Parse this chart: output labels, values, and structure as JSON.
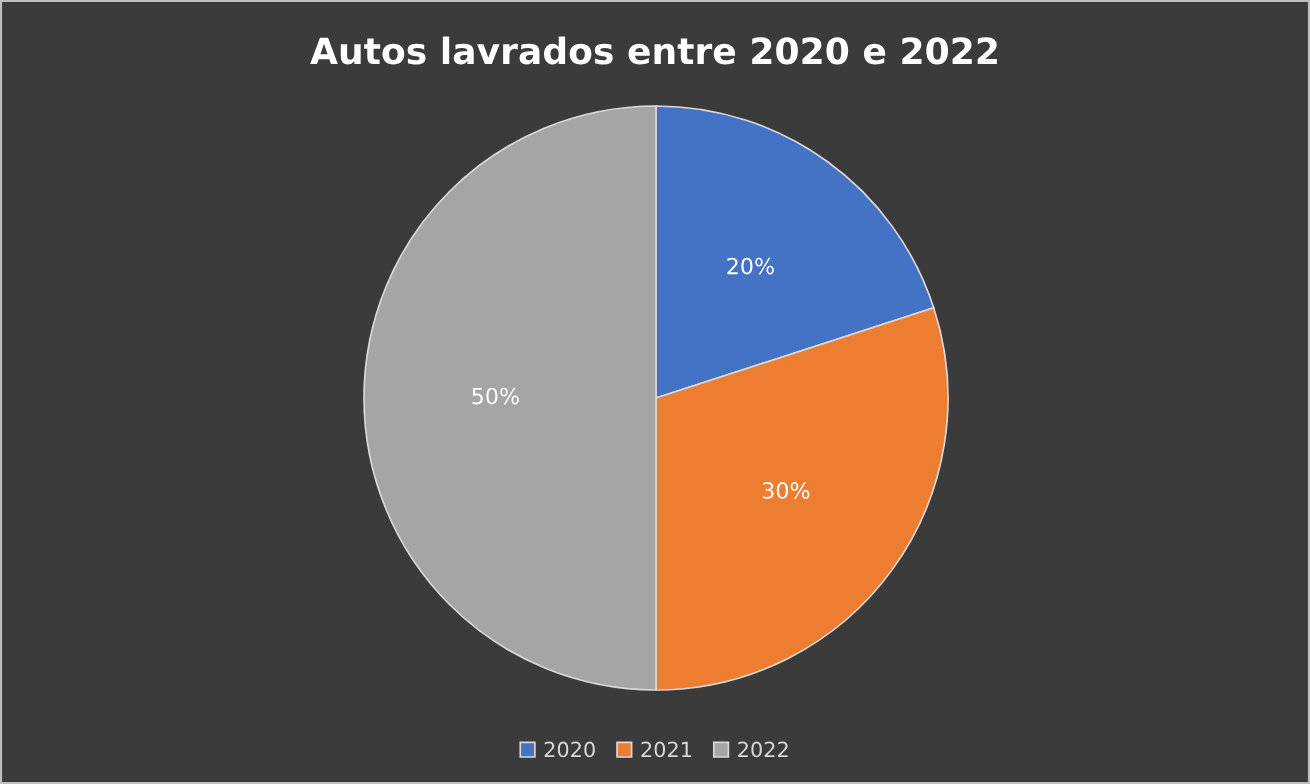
{
  "chart_data": {
    "type": "pie",
    "title": "Autos lavrados entre 2020 e 2022",
    "categories": [
      "2020",
      "2021",
      "2022"
    ],
    "values": [
      20,
      30,
      50
    ],
    "colors": [
      "#4472c4",
      "#ed7d31",
      "#a5a5a5"
    ],
    "value_labels": [
      "20%",
      "30%",
      "50%"
    ],
    "legend": "bottom"
  }
}
